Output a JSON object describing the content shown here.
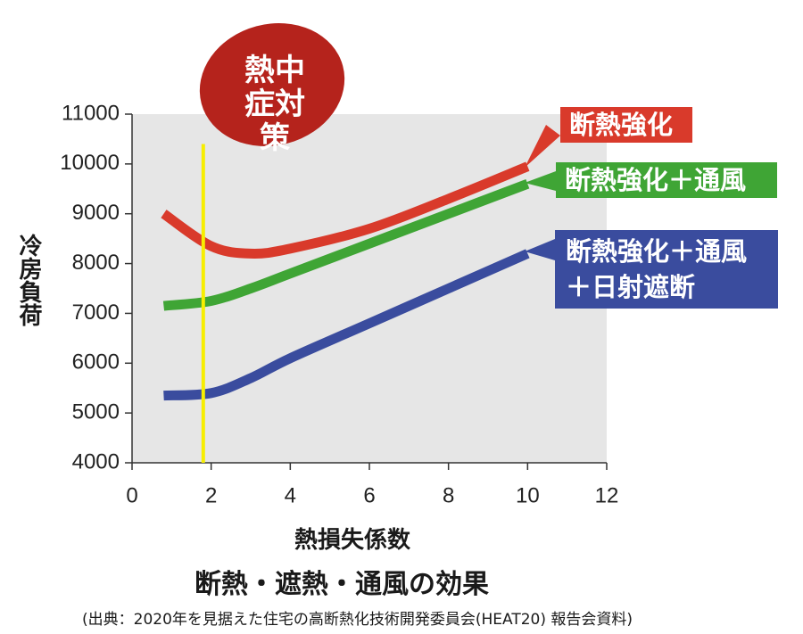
{
  "chart_data": {
    "type": "line",
    "title": "断熱・遮熱・通風の効果",
    "source": "(出典：2020年を見据えた住宅の高断熱化技術開発委員会(HEAT20) 報告会資料)",
    "annotation": "熱中症対策",
    "x_label": "熱損失係数",
    "y_label": "冷房負荷",
    "x": [
      0.8,
      2,
      3,
      4,
      6,
      8,
      10
    ],
    "series": [
      {
        "name": "断熱強化",
        "color": "#d93a2b",
        "values": [
          9000,
          8350,
          8200,
          8300,
          8700,
          9300,
          9950
        ]
      },
      {
        "name": "断熱強化＋通風",
        "color": "#3fa535",
        "values": [
          7150,
          7250,
          7500,
          7800,
          8400,
          9000,
          9600
        ]
      },
      {
        "name": "断熱強化＋通風＋日射遮断",
        "color": "#3a4c9e",
        "values": [
          5350,
          5400,
          5700,
          6100,
          6800,
          7500,
          8200
        ]
      }
    ],
    "vline_x": 1.8,
    "vline_top": 10400,
    "vline_color": "#f7ee00",
    "xlim": [
      0,
      12
    ],
    "xticks": [
      0,
      2,
      4,
      6,
      8,
      10,
      12
    ],
    "ylim": [
      4000,
      11000
    ],
    "yticks": [
      4000,
      5000,
      6000,
      7000,
      8000,
      9000,
      10000,
      11000
    ]
  }
}
